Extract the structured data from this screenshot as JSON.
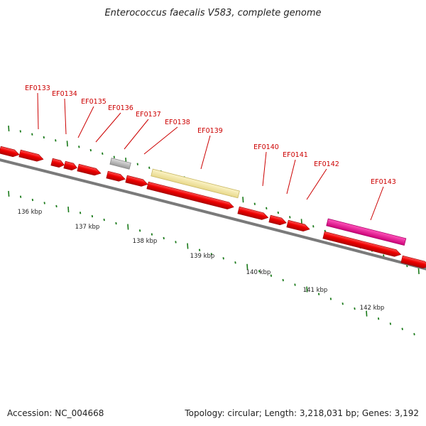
{
  "title": "Enterococcus faecalis V583, complete genome",
  "footer": {
    "accession": "Accession: NC_004668",
    "summary": "Topology: circular; Length: 3,218,031 bp; Genes: 3,192"
  },
  "genes": [
    "EF0133",
    "EF0134",
    "EF0135",
    "EF0136",
    "EF0137",
    "EF0138",
    "EF0139",
    "EF0140",
    "EF0141",
    "EF0142",
    "EF0143"
  ],
  "kbp_labels": [
    "136 kbp",
    "137 kbp",
    "138 kbp",
    "139 kbp",
    "140 kbp",
    "141 kbp",
    "142 kbp"
  ],
  "colors": {
    "gene": "#ee0000",
    "gene_dark": "#aa0000",
    "label": "#cc0000",
    "backbone": "#808080",
    "tick": "#1a7a1a",
    "pseudo_gene": "#bbbbbb",
    "highlight_yellow": "#f2e6a0",
    "highlight_magenta": "#ee1199"
  }
}
